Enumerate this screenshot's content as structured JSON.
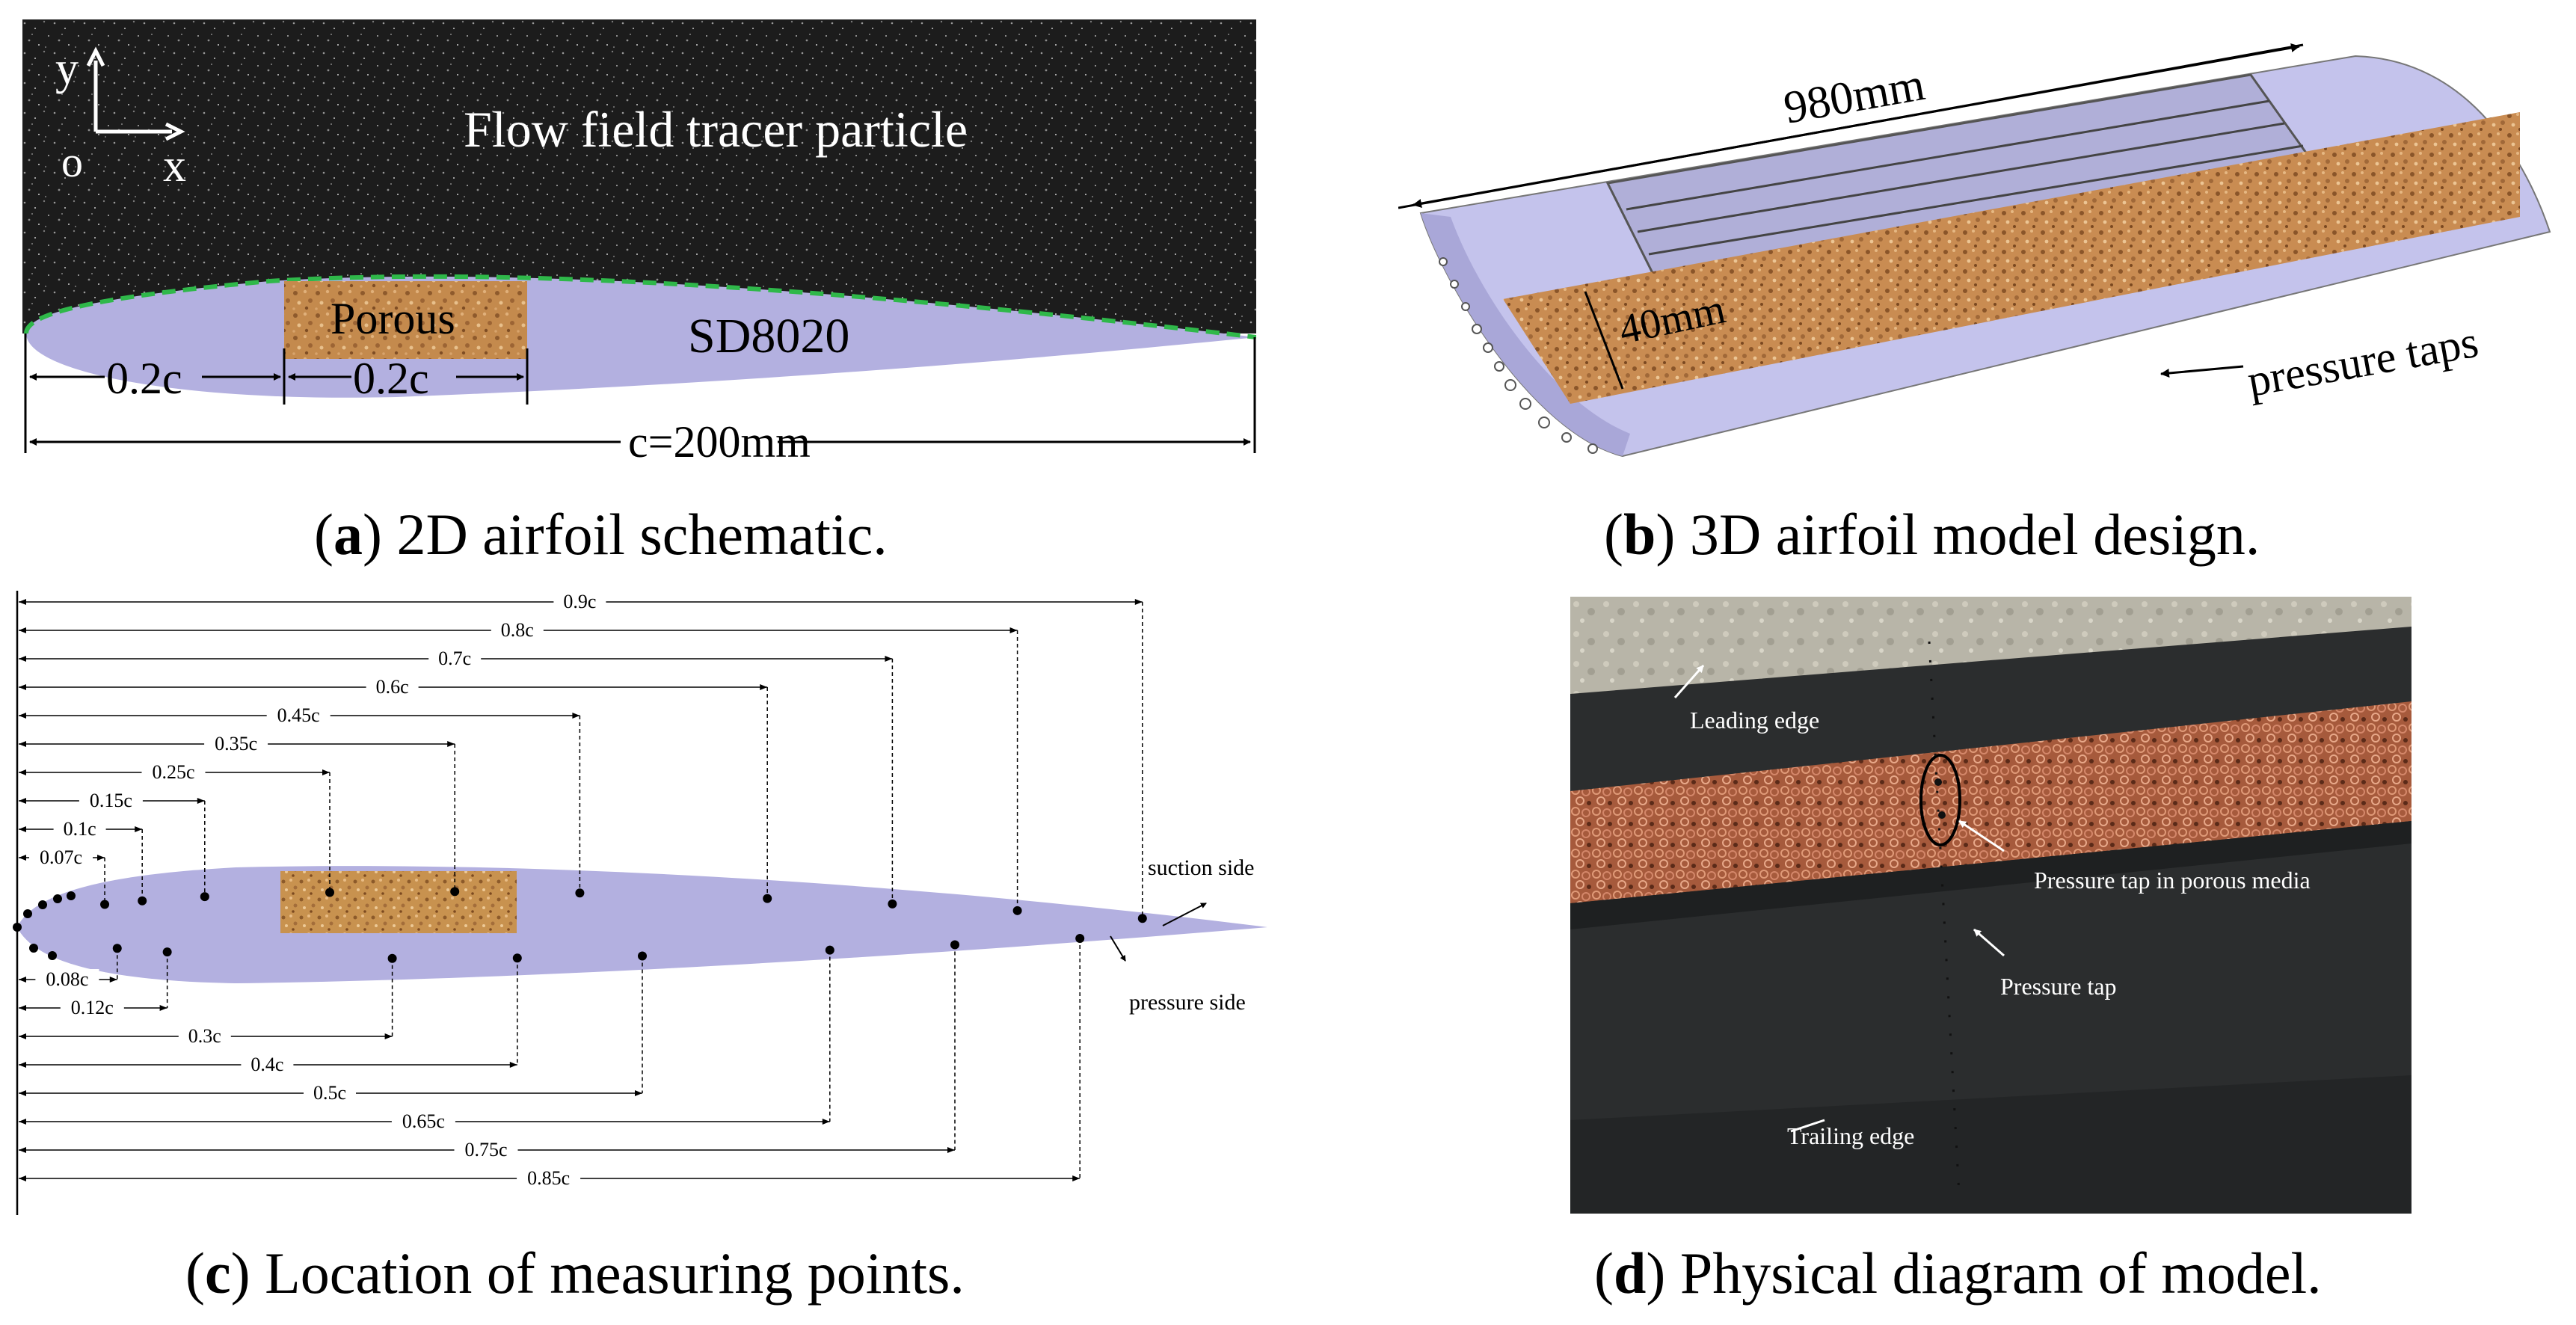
{
  "panel_a": {
    "axis_y": "y",
    "axis_o": "o",
    "axis_x": "x",
    "flow_label": "Flow field tracer particle",
    "porous_label": "Porous",
    "airfoil_label": "SD8020",
    "dim_1": "0.2c",
    "dim_2": "0.2c",
    "chord_label": "c=200mm",
    "caption_letter": "a",
    "caption_text": "2D airfoil schematic."
  },
  "panel_b": {
    "span_label": "980mm",
    "width_label": "40mm",
    "taps_label": "pressure taps",
    "caption_letter": "b",
    "caption_text": "3D airfoil model design."
  },
  "panel_c": {
    "suction_label": "suction side",
    "pressure_label": "pressure side",
    "suction_points": [
      "0.9c",
      "0.8c",
      "0.7c",
      "0.6c",
      "0.45c",
      "0.35c",
      "0.25c",
      "0.15c",
      "0.1c",
      "0.07c"
    ],
    "pressure_points": [
      "0.08c",
      "0.12c",
      "0.3c",
      "0.4c",
      "0.5c",
      "0.65c",
      "0.75c",
      "0.85c"
    ],
    "caption_letter": "c",
    "caption_text": "Location of measuring points."
  },
  "panel_d": {
    "leading_edge": "Leading edge",
    "tap_porous": "Pressure tap in porous media",
    "tap": "Pressure tap",
    "trailing_edge": "Trailing edge",
    "caption_letter": "d",
    "caption_text": "Physical diagram of model."
  },
  "colors": {
    "airfoil": "#b3b0e0",
    "porous": "#c68a4e",
    "dark_bg": "#1f1f1f",
    "dash_green": "#2fb84a"
  }
}
